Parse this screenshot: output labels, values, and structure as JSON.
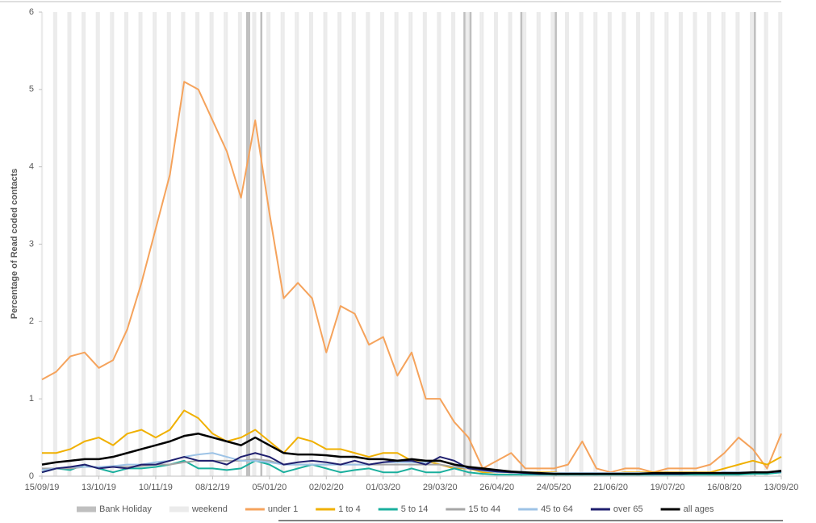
{
  "chart_data": {
    "type": "line",
    "y_label": "Percentage of Read coded contacts",
    "x": [
      "15/09/19",
      "22/09/19",
      "29/09/19",
      "06/10/19",
      "13/10/19",
      "20/10/19",
      "27/10/19",
      "03/11/19",
      "10/11/19",
      "17/11/19",
      "24/11/19",
      "01/12/19",
      "08/12/19",
      "15/12/19",
      "22/12/19",
      "29/12/19",
      "05/01/20",
      "12/01/20",
      "19/01/20",
      "26/01/20",
      "02/02/20",
      "09/02/20",
      "16/02/20",
      "23/02/20",
      "01/03/20",
      "08/03/20",
      "15/03/20",
      "22/03/20",
      "29/03/20",
      "05/04/20",
      "12/04/20",
      "19/04/20",
      "26/04/20",
      "03/05/20",
      "10/05/20",
      "17/05/20",
      "24/05/20",
      "31/05/20",
      "07/06/20",
      "14/06/20",
      "21/06/20",
      "28/06/20",
      "05/07/20",
      "12/07/20",
      "19/07/20",
      "26/07/20",
      "02/08/20",
      "09/08/20",
      "16/08/20",
      "23/08/20",
      "30/08/20",
      "06/09/20",
      "13/09/20"
    ],
    "xlim": [
      "15/09/19",
      "13/09/20"
    ],
    "xticks": [
      "15/09/19",
      "13/10/19",
      "10/11/19",
      "08/12/19",
      "05/01/20",
      "02/02/20",
      "01/03/20",
      "29/03/20",
      "26/04/20",
      "24/05/20",
      "21/06/20",
      "19/07/20",
      "16/08/20",
      "13/09/20"
    ],
    "ylim": [
      0,
      6
    ],
    "yticks": [
      0,
      1,
      2,
      3,
      4,
      5,
      6
    ],
    "grid": false,
    "bank_holidays": {
      "name": "Bank Holiday",
      "color": "#bfbfbf",
      "dates": [
        "25/12/19",
        "26/12/19",
        "01/01/20",
        "10/04/20",
        "13/04/20",
        "08/05/20",
        "25/05/20",
        "31/08/20"
      ]
    },
    "weekend": {
      "name": "weekend",
      "color": "#ebebeb"
    },
    "legend": "bottom",
    "series": [
      {
        "name": "under 1",
        "color": "#f5a35c",
        "values": [
          1.25,
          1.35,
          1.55,
          1.6,
          1.4,
          1.5,
          1.9,
          2.5,
          3.2,
          3.9,
          5.1,
          5.0,
          4.6,
          4.2,
          3.6,
          4.6,
          3.4,
          2.3,
          2.5,
          2.3,
          1.6,
          2.2,
          2.1,
          1.7,
          1.8,
          1.3,
          1.6,
          1.0,
          1.0,
          0.7,
          0.5,
          0.1,
          0.2,
          0.3,
          0.1,
          0.1,
          0.1,
          0.15,
          0.45,
          0.1,
          0.05,
          0.1,
          0.1,
          0.05,
          0.1,
          0.1,
          0.1,
          0.15,
          0.3,
          0.5,
          0.35,
          0.1,
          0.55
        ]
      },
      {
        "name": "1 to 4",
        "color": "#f0b000",
        "values": [
          0.3,
          0.3,
          0.35,
          0.45,
          0.5,
          0.4,
          0.55,
          0.6,
          0.5,
          0.6,
          0.85,
          0.75,
          0.55,
          0.45,
          0.5,
          0.6,
          0.45,
          0.3,
          0.5,
          0.45,
          0.35,
          0.35,
          0.3,
          0.25,
          0.3,
          0.3,
          0.2,
          0.2,
          0.15,
          0.1,
          0.1,
          0.05,
          0.05,
          0.05,
          0.05,
          0.05,
          0.05,
          0.03,
          0.03,
          0.03,
          0.03,
          0.05,
          0.05,
          0.05,
          0.05,
          0.05,
          0.05,
          0.05,
          0.1,
          0.15,
          0.2,
          0.15,
          0.25
        ]
      },
      {
        "name": "5 to 14",
        "color": "#1aaf9d",
        "values": [
          0.05,
          0.1,
          0.08,
          0.15,
          0.1,
          0.05,
          0.1,
          0.1,
          0.12,
          0.15,
          0.2,
          0.1,
          0.1,
          0.08,
          0.1,
          0.2,
          0.15,
          0.05,
          0.1,
          0.15,
          0.1,
          0.05,
          0.08,
          0.1,
          0.05,
          0.05,
          0.1,
          0.05,
          0.05,
          0.1,
          0.05,
          0.03,
          0.02,
          0.02,
          0.02,
          0.02,
          0.02,
          0.02,
          0.02,
          0.02,
          0.02,
          0.02,
          0.02,
          0.02,
          0.02,
          0.02,
          0.02,
          0.02,
          0.02,
          0.02,
          0.03,
          0.03,
          0.05
        ]
      },
      {
        "name": "15 to 44",
        "color": "#a6a6a6",
        "values": [
          0.1,
          0.1,
          0.1,
          0.12,
          0.12,
          0.12,
          0.12,
          0.13,
          0.15,
          0.15,
          0.18,
          0.2,
          0.2,
          0.2,
          0.2,
          0.22,
          0.2,
          0.15,
          0.15,
          0.15,
          0.15,
          0.15,
          0.15,
          0.15,
          0.15,
          0.15,
          0.15,
          0.15,
          0.15,
          0.12,
          0.1,
          0.08,
          0.06,
          0.05,
          0.05,
          0.04,
          0.04,
          0.04,
          0.04,
          0.04,
          0.04,
          0.04,
          0.04,
          0.04,
          0.04,
          0.04,
          0.04,
          0.04,
          0.05,
          0.05,
          0.05,
          0.05,
          0.06
        ]
      },
      {
        "name": "45 to 64",
        "color": "#9dc3e6",
        "values": [
          0.08,
          0.1,
          0.12,
          0.12,
          0.12,
          0.13,
          0.15,
          0.15,
          0.18,
          0.2,
          0.25,
          0.28,
          0.3,
          0.25,
          0.2,
          0.2,
          0.18,
          0.15,
          0.15,
          0.15,
          0.15,
          0.15,
          0.15,
          0.15,
          0.18,
          0.18,
          0.18,
          0.18,
          0.2,
          0.15,
          0.1,
          0.07,
          0.05,
          0.05,
          0.04,
          0.04,
          0.04,
          0.04,
          0.04,
          0.04,
          0.04,
          0.04,
          0.04,
          0.04,
          0.04,
          0.04,
          0.04,
          0.04,
          0.05,
          0.05,
          0.05,
          0.05,
          0.06
        ]
      },
      {
        "name": "over 65",
        "color": "#1f1f6e",
        "values": [
          0.05,
          0.1,
          0.12,
          0.15,
          0.1,
          0.12,
          0.1,
          0.15,
          0.15,
          0.2,
          0.25,
          0.2,
          0.2,
          0.15,
          0.25,
          0.3,
          0.25,
          0.15,
          0.18,
          0.2,
          0.18,
          0.15,
          0.2,
          0.15,
          0.18,
          0.2,
          0.2,
          0.15,
          0.25,
          0.2,
          0.1,
          0.08,
          0.06,
          0.05,
          0.04,
          0.03,
          0.03,
          0.03,
          0.03,
          0.03,
          0.03,
          0.03,
          0.03,
          0.03,
          0.03,
          0.03,
          0.04,
          0.04,
          0.04,
          0.04,
          0.05,
          0.05,
          0.06
        ]
      },
      {
        "name": "all ages",
        "color": "#000000",
        "values": [
          0.15,
          0.18,
          0.2,
          0.22,
          0.22,
          0.25,
          0.3,
          0.35,
          0.4,
          0.45,
          0.52,
          0.55,
          0.5,
          0.45,
          0.4,
          0.5,
          0.4,
          0.3,
          0.28,
          0.28,
          0.27,
          0.25,
          0.25,
          0.22,
          0.22,
          0.2,
          0.22,
          0.2,
          0.2,
          0.15,
          0.12,
          0.1,
          0.08,
          0.06,
          0.05,
          0.04,
          0.03,
          0.03,
          0.03,
          0.03,
          0.03,
          0.03,
          0.03,
          0.04,
          0.04,
          0.04,
          0.04,
          0.04,
          0.04,
          0.04,
          0.05,
          0.05,
          0.07
        ]
      }
    ]
  }
}
